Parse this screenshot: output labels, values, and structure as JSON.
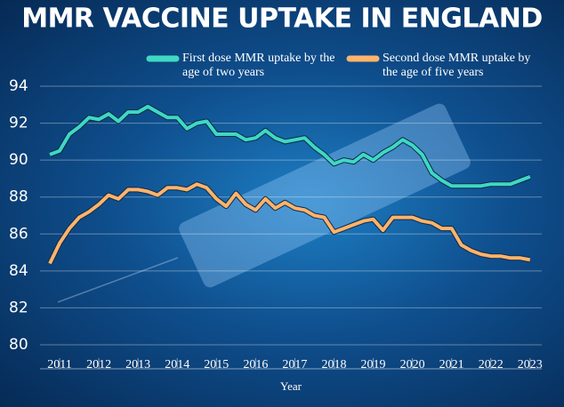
{
  "chart_data": {
    "type": "line",
    "title": "MMR VACCINE UPTAKE IN ENGLAND",
    "x_label": "Year",
    "x": [
      2010.75,
      2011.0,
      2011.25,
      2011.5,
      2011.75,
      2012.0,
      2012.25,
      2012.5,
      2012.75,
      2013.0,
      2013.25,
      2013.5,
      2013.75,
      2014.0,
      2014.25,
      2014.5,
      2014.75,
      2015.0,
      2015.25,
      2015.5,
      2015.75,
      2016.0,
      2016.25,
      2016.5,
      2016.75,
      2017.0,
      2017.25,
      2017.5,
      2017.75,
      2018.0,
      2018.25,
      2018.5,
      2018.75,
      2019.0,
      2019.25,
      2019.5,
      2019.75,
      2020.0,
      2020.25,
      2020.5,
      2020.75,
      2021.0,
      2021.25,
      2021.5,
      2021.75,
      2022.0,
      2022.25,
      2022.5,
      2022.75,
      2023.0
    ],
    "series": [
      {
        "name": "First dose MMR uptake by the age of two years",
        "color": "#3fd8c2",
        "values": [
          90.3,
          90.5,
          91.4,
          91.8,
          92.3,
          92.2,
          92.5,
          92.1,
          92.6,
          92.6,
          92.9,
          92.6,
          92.3,
          92.3,
          91.7,
          92.0,
          92.1,
          91.4,
          91.4,
          91.4,
          91.1,
          91.2,
          91.6,
          91.2,
          91.0,
          91.1,
          91.2,
          90.7,
          90.3,
          89.8,
          90.0,
          89.9,
          90.3,
          90.0,
          90.4,
          90.7,
          91.1,
          90.8,
          90.3,
          89.3,
          88.9,
          88.6,
          88.6,
          88.6,
          88.6,
          88.7,
          88.7,
          88.7,
          88.9,
          89.1
        ]
      },
      {
        "name": "Second dose MMR uptake by the age of five years",
        "color": "#ffb36b",
        "values": [
          84.4,
          85.5,
          86.3,
          86.9,
          87.2,
          87.6,
          88.1,
          87.9,
          88.4,
          88.4,
          88.3,
          88.1,
          88.5,
          88.5,
          88.4,
          88.7,
          88.5,
          87.9,
          87.5,
          88.2,
          87.6,
          87.3,
          87.9,
          87.4,
          87.7,
          87.4,
          87.3,
          87.0,
          86.9,
          86.1,
          86.3,
          86.5,
          86.7,
          86.8,
          86.2,
          86.9,
          86.9,
          86.9,
          86.7,
          86.6,
          86.3,
          86.3,
          85.4,
          85.1,
          84.9,
          84.8,
          84.8,
          84.7,
          84.7,
          84.6
        ]
      }
    ],
    "xlim": [
      2010.5,
      2023.3
    ],
    "xticks": [
      2011,
      2012,
      2013,
      2014,
      2015,
      2016,
      2017,
      2018,
      2019,
      2020,
      2021,
      2022,
      2023
    ],
    "ylim": [
      80,
      94
    ],
    "yticks": [
      80,
      82,
      84,
      86,
      88,
      90,
      92,
      94
    ],
    "grid": true
  }
}
